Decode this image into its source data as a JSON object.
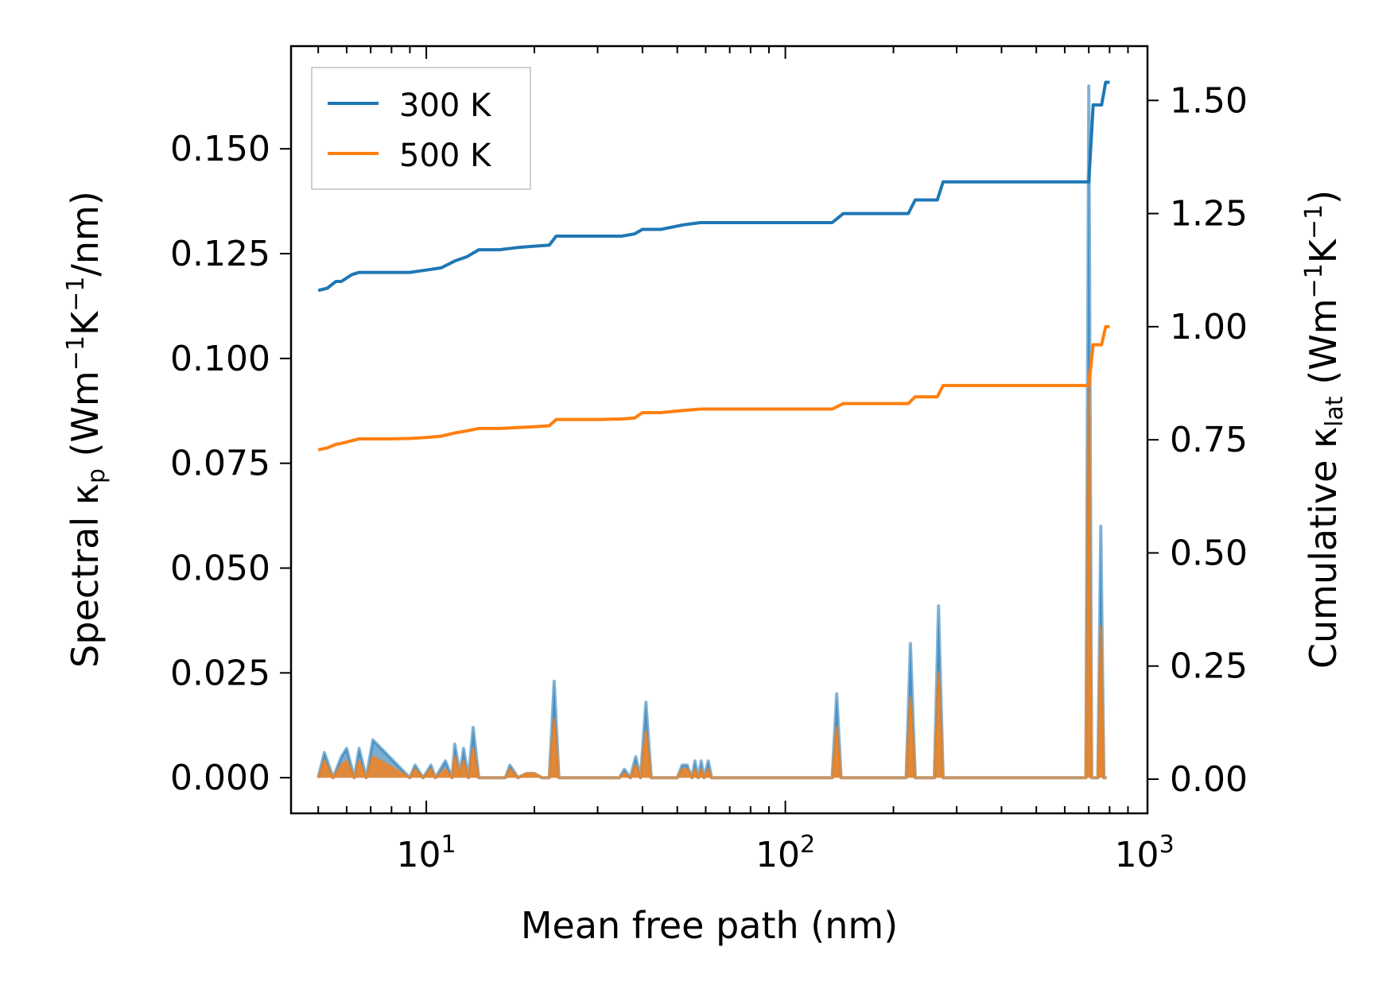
{
  "chart_data": {
    "type": "line",
    "x_scale": "log",
    "xlim": [
      4.2,
      1020
    ],
    "ylim_left": [
      -0.0085,
      0.1745
    ],
    "ylim_right": [
      -0.0755,
      1.62
    ],
    "xlabel": "Mean free path (nm)",
    "ylabel_left": "Spectral κ_p (Wm⁻¹K⁻¹/nm)",
    "ylabel_left_parts": {
      "main": "Spectral κ",
      "sub": "p",
      "open": " (Wm",
      "sup1": "−1",
      "mid": "K",
      "sup2": "−1",
      "tail": "/nm)"
    },
    "ylabel_right": "Cumulative κ_lat (Wm⁻¹K⁻¹)",
    "ylabel_right_parts": {
      "main": "Cumulative κ",
      "sub": "lat",
      "open": " (Wm",
      "sup1": "−1",
      "mid": "K",
      "sup2": "−1",
      "tail": ")"
    },
    "x_ticks": [
      {
        "value": 10,
        "base": "10",
        "exp": "1"
      },
      {
        "value": 100,
        "base": "10",
        "exp": "2"
      },
      {
        "value": 1000,
        "base": "10",
        "exp": "3"
      }
    ],
    "y_ticks_left": [
      {
        "value": 0.0,
        "label": "0.000"
      },
      {
        "value": 0.025,
        "label": "0.025"
      },
      {
        "value": 0.05,
        "label": "0.050"
      },
      {
        "value": 0.075,
        "label": "0.075"
      },
      {
        "value": 0.1,
        "label": "0.100"
      },
      {
        "value": 0.125,
        "label": "0.125"
      },
      {
        "value": 0.15,
        "label": "0.150"
      }
    ],
    "y_ticks_right": [
      {
        "value": 0.0,
        "label": "0.00"
      },
      {
        "value": 0.25,
        "label": "0.25"
      },
      {
        "value": 0.5,
        "label": "0.50"
      },
      {
        "value": 0.75,
        "label": "0.75"
      },
      {
        "value": 1.0,
        "label": "1.00"
      },
      {
        "value": 1.25,
        "label": "1.25"
      },
      {
        "value": 1.5,
        "label": "1.50"
      }
    ],
    "legend": {
      "location": "upper-left",
      "entries": [
        {
          "label": "300 K",
          "color": "#1f77b4"
        },
        {
          "label": "500 K",
          "color": "#ff7f0e"
        }
      ]
    },
    "series": [
      {
        "name": "300 K cumulative",
        "axis": "right",
        "color": "#1f77b4",
        "x": [
          5.0,
          5.3,
          5.6,
          5.8,
          6.2,
          6.5,
          6.8,
          8.0,
          9.0,
          10.0,
          11.0,
          12.0,
          13.0,
          14.0,
          16.0,
          18.0,
          20.0,
          22.0,
          23.0,
          25.0,
          30.0,
          35.0,
          38.0,
          40.0,
          45.0,
          52.0,
          58.0,
          62.0,
          80.0,
          100.0,
          135.0,
          145.0,
          180.0,
          220.0,
          230.0,
          265.0,
          275.0,
          400.0,
          600.0,
          700.0,
          720.0,
          760.0,
          780.0,
          800.0
        ],
        "y": [
          1.08,
          1.085,
          1.1,
          1.1,
          1.115,
          1.12,
          1.12,
          1.12,
          1.12,
          1.125,
          1.13,
          1.145,
          1.155,
          1.17,
          1.17,
          1.175,
          1.178,
          1.18,
          1.2,
          1.2,
          1.2,
          1.2,
          1.205,
          1.215,
          1.215,
          1.225,
          1.23,
          1.23,
          1.23,
          1.23,
          1.23,
          1.25,
          1.25,
          1.25,
          1.28,
          1.28,
          1.32,
          1.32,
          1.32,
          1.32,
          1.49,
          1.49,
          1.54,
          1.54
        ]
      },
      {
        "name": "500 K cumulative",
        "axis": "right",
        "color": "#ff7f0e",
        "x": [
          5.0,
          5.3,
          5.6,
          5.8,
          6.2,
          6.5,
          6.8,
          8.0,
          9.0,
          10.0,
          11.0,
          12.0,
          13.0,
          14.0,
          16.0,
          18.0,
          20.0,
          22.0,
          23.0,
          25.0,
          30.0,
          35.0,
          38.0,
          40.0,
          45.0,
          52.0,
          58.0,
          62.0,
          80.0,
          100.0,
          135.0,
          145.0,
          180.0,
          220.0,
          230.0,
          265.0,
          275.0,
          400.0,
          600.0,
          700.0,
          720.0,
          760.0,
          780.0,
          800.0
        ],
        "y": [
          0.728,
          0.732,
          0.74,
          0.742,
          0.748,
          0.752,
          0.752,
          0.752,
          0.753,
          0.755,
          0.758,
          0.765,
          0.77,
          0.775,
          0.775,
          0.777,
          0.779,
          0.781,
          0.795,
          0.795,
          0.795,
          0.796,
          0.798,
          0.81,
          0.81,
          0.815,
          0.818,
          0.818,
          0.818,
          0.818,
          0.818,
          0.83,
          0.83,
          0.83,
          0.845,
          0.845,
          0.87,
          0.87,
          0.87,
          0.87,
          0.96,
          0.96,
          1.0,
          1.0
        ]
      },
      {
        "name": "300 K spectral",
        "axis": "left",
        "color": "#1f77b4",
        "fill": true,
        "x": [
          5.0,
          5.2,
          5.5,
          5.8,
          6.0,
          6.3,
          6.5,
          6.8,
          7.1,
          9.0,
          9.3,
          9.8,
          10.3,
          10.6,
          11.3,
          11.8,
          12.0,
          12.4,
          12.7,
          13.1,
          13.5,
          14.0,
          14.3,
          15.3,
          16.6,
          17.1,
          18.0,
          19.0,
          20.0,
          21.0,
          22.0,
          22.7,
          23.4,
          34.5,
          35.6,
          37.0,
          38.3,
          39.5,
          40.9,
          42.3,
          43.7,
          50.0,
          51.6,
          53.3,
          54.9,
          56.0,
          57.2,
          58.3,
          59.4,
          61.0,
          62.3,
          135.0,
          139.0,
          143.0,
          217.0,
          223.0,
          230.0,
          260.0,
          267.0,
          275.0,
          687.0,
          700.0,
          713.0,
          742.0,
          756.0,
          771.0,
          785.0
        ],
        "y": [
          0.0,
          0.006,
          0.0,
          0.005,
          0.007,
          0.0,
          0.007,
          0.0,
          0.009,
          0.0,
          0.003,
          0.0,
          0.003,
          0.0,
          0.004,
          0.0,
          0.008,
          0.001,
          0.007,
          0.0,
          0.012,
          0.0,
          0.0,
          0.0,
          0.0,
          0.003,
          0.0,
          0.001,
          0.001,
          0.0,
          0.0,
          0.023,
          0.0,
          0.0,
          0.002,
          0.0,
          0.005,
          0.0,
          0.018,
          0.0,
          0.0,
          0.0,
          0.003,
          0.003,
          0.0,
          0.004,
          0.0,
          0.004,
          0.0,
          0.004,
          0.0,
          0.0,
          0.02,
          0.0,
          0.0,
          0.032,
          0.0,
          0.0,
          0.041,
          0.0,
          0.0,
          0.165,
          0.0,
          0.0,
          0.06,
          0.0,
          0.0
        ]
      },
      {
        "name": "500 K spectral",
        "axis": "left",
        "color": "#ff7f0e",
        "fill": true,
        "x": [
          5.0,
          5.2,
          5.5,
          5.8,
          6.0,
          6.3,
          6.5,
          6.8,
          7.1,
          9.0,
          9.3,
          9.8,
          10.3,
          10.6,
          11.3,
          11.8,
          12.0,
          12.4,
          12.7,
          13.1,
          13.5,
          14.0,
          14.3,
          15.3,
          16.6,
          17.1,
          18.0,
          19.0,
          20.0,
          21.0,
          22.0,
          22.7,
          23.4,
          34.5,
          35.6,
          37.0,
          38.3,
          39.5,
          40.9,
          42.3,
          43.7,
          50.0,
          51.6,
          53.3,
          54.9,
          56.0,
          57.2,
          58.3,
          59.4,
          61.0,
          62.3,
          135.0,
          139.0,
          143.0,
          217.0,
          223.0,
          230.0,
          260.0,
          267.0,
          275.0,
          687.0,
          700.0,
          713.0,
          742.0,
          756.0,
          771.0,
          785.0
        ],
        "y": [
          0.0,
          0.004,
          0.0,
          0.003,
          0.004,
          0.0,
          0.004,
          0.0,
          0.005,
          0.0,
          0.002,
          0.0,
          0.002,
          0.0,
          0.002,
          0.0,
          0.005,
          0.001,
          0.004,
          0.0,
          0.007,
          0.0,
          0.0,
          0.0,
          0.0,
          0.002,
          0.0,
          0.001,
          0.001,
          0.0,
          0.0,
          0.014,
          0.0,
          0.0,
          0.001,
          0.0,
          0.003,
          0.0,
          0.011,
          0.0,
          0.0,
          0.0,
          0.002,
          0.002,
          0.0,
          0.002,
          0.0,
          0.002,
          0.0,
          0.002,
          0.0,
          0.0,
          0.012,
          0.0,
          0.0,
          0.019,
          0.0,
          0.0,
          0.025,
          0.0,
          0.0,
          0.097,
          0.0,
          0.0,
          0.036,
          0.0,
          0.0
        ]
      }
    ]
  }
}
